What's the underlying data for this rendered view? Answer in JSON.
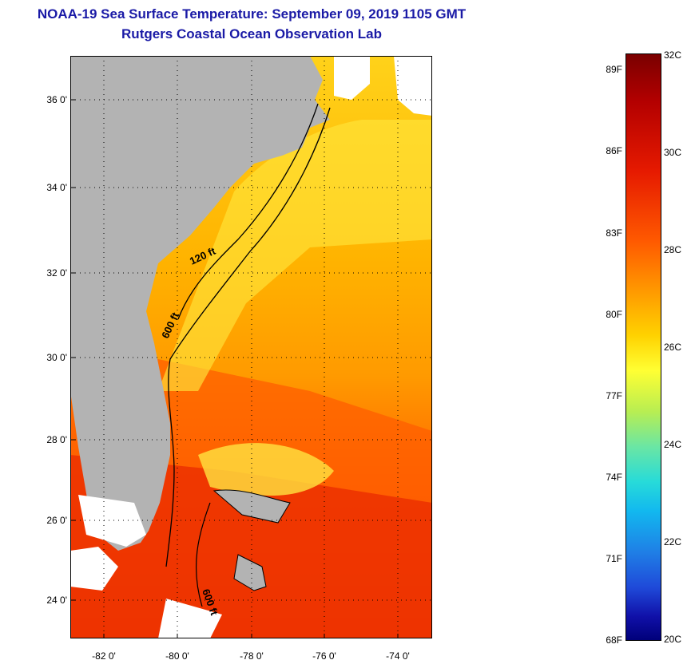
{
  "title": {
    "line1": "NOAA-19 Sea Surface Temperature:  September 09, 2019 1105 GMT",
    "line2": "Rutgers Coastal Ocean Observation Lab"
  },
  "map": {
    "y_ticks": [
      "36 0'",
      "34 0'",
      "32 0'",
      "30 0'",
      "28 0'",
      "26 0'",
      "24 0'"
    ],
    "x_ticks": [
      "-82 0'",
      "-80 0'",
      "-78 0'",
      "-76 0'",
      "-74 0'"
    ],
    "isobath_labels": [
      "120 ft",
      "600 ft",
      "600 ft"
    ],
    "colors": {
      "land": "#b3b3b3",
      "cloud": "#ffffff",
      "warm": "#ff6a00",
      "hot": "#e81f00",
      "mild": "#ffc400",
      "cool": "#ffe53a"
    }
  },
  "colorbar": {
    "fahrenheit": [
      "89F",
      "86F",
      "83F",
      "80F",
      "77F",
      "74F",
      "71F",
      "68F"
    ],
    "celsius": [
      "32C",
      "30C",
      "28C",
      "26C",
      "24C",
      "22C",
      "20C"
    ]
  }
}
